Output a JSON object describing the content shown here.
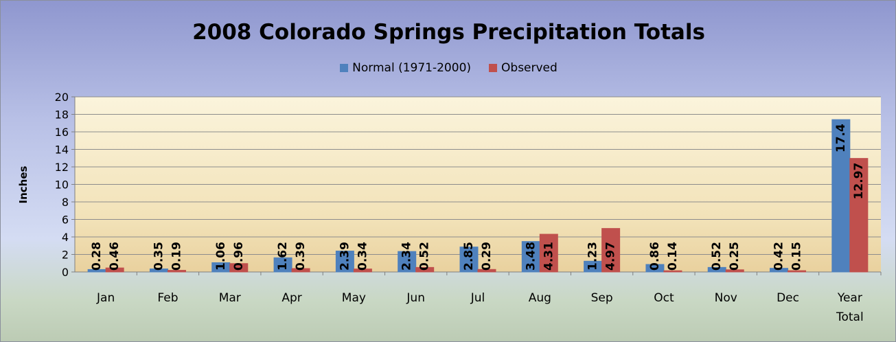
{
  "chart_data": {
    "type": "bar",
    "title": "2008 Colorado Springs Precipitation Totals",
    "xlabel": "",
    "ylabel": "Inches",
    "ylim": [
      0,
      20
    ],
    "yticks": [
      "0",
      "2",
      "4",
      "6",
      "8",
      "10",
      "12",
      "14",
      "16",
      "18",
      "20"
    ],
    "grid": true,
    "legend_position": "top",
    "categories": [
      "Jan",
      "Feb",
      "Mar",
      "Apr",
      "May",
      "Jun",
      "Jul",
      "Aug",
      "Sep",
      "Oct",
      "Nov",
      "Dec",
      "Year Total"
    ],
    "category_lines": [
      [
        "Jan"
      ],
      [
        "Feb"
      ],
      [
        "Mar"
      ],
      [
        "Apr"
      ],
      [
        "May"
      ],
      [
        "Jun"
      ],
      [
        "Jul"
      ],
      [
        "Aug"
      ],
      [
        "Sep"
      ],
      [
        "Oct"
      ],
      [
        "Nov"
      ],
      [
        "Dec"
      ],
      [
        "Year",
        "Total"
      ]
    ],
    "series": [
      {
        "name": "Normal (1971-2000)",
        "color": "#4f81bd",
        "values": [
          0.28,
          0.35,
          1.06,
          1.62,
          2.39,
          2.34,
          2.85,
          3.48,
          1.23,
          0.86,
          0.52,
          0.42,
          17.4
        ],
        "labels": [
          "0.28",
          "0.35",
          "1.06",
          "1.62",
          "2.39",
          "2.34",
          "2.85",
          "3.48",
          "1.23",
          "0.86",
          "0.52",
          "0.42",
          "17.4"
        ]
      },
      {
        "name": "Observed",
        "color": "#c0504d",
        "values": [
          0.46,
          0.19,
          0.96,
          0.39,
          0.34,
          0.52,
          0.29,
          4.31,
          4.97,
          0.14,
          0.25,
          0.15,
          12.97
        ],
        "labels": [
          "0.46",
          "0.19",
          "0.96",
          "0.39",
          "0.34",
          "0.52",
          "0.29",
          "4.31",
          "4.97",
          "0.14",
          "0.25",
          "0.15",
          "12.97"
        ]
      }
    ]
  }
}
